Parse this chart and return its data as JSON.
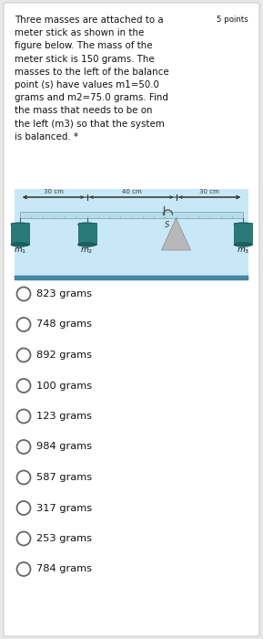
{
  "bg_color": "#e8e8e8",
  "card_color": "#ffffff",
  "points_text": "5 points",
  "text_lines": [
    [
      "Three masses are attached to a ",
      "5 points"
    ],
    "meter stick as shown in the",
    "figure below. The mass of the",
    "meter stick is 150 grams. The",
    "masses to the left of the balance",
    "point (s) have values m1=50.0",
    "grams and m2=75.0 grams. Find",
    "the mass that needs to be on",
    "the left (m3) so that the system",
    "is balanced. *"
  ],
  "choices": [
    "823 grams",
    "748 grams",
    "892 grams",
    "100 grams",
    "123 grams",
    "984 grams",
    "587 grams",
    "317 grams",
    "253 grams",
    "784 grams"
  ],
  "stick_color": "#b8dce8",
  "stick_border": "#7aaabb",
  "mass_body_color": "#2a7a7a",
  "mass_top_color": "#3a9a9a",
  "mass_bottom_color": "#1a6060",
  "fulcrum_color": "#b8b8b8",
  "fulcrum_border": "#888888",
  "table_color": "#4488aa",
  "table_border": "#336677",
  "text_color": "#111111",
  "meas_color": "#333333",
  "diag_bg": "#c8e8f8",
  "string_color": "#555555"
}
